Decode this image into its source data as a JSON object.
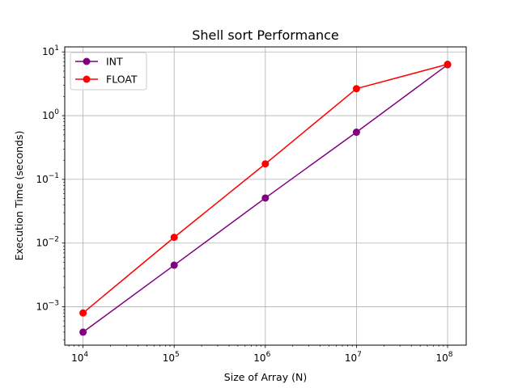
{
  "chart_data": {
    "type": "line",
    "title": "Shell sort Performance",
    "xlabel": "Size of Array (N)",
    "ylabel": "Execution Time (seconds)",
    "xscale": "log",
    "yscale": "log",
    "xlim": [
      6300,
      160000000
    ],
    "ylim": [
      0.00025,
      12
    ],
    "grid": true,
    "legend_position": "top-left",
    "x": [
      10000,
      100000,
      1000000,
      10000000,
      100000000
    ],
    "x_tick_values": [
      10000,
      100000,
      1000000,
      10000000,
      100000000
    ],
    "x_tick_exponents": [
      "4",
      "5",
      "6",
      "7",
      "8"
    ],
    "y_tick_values": [
      0.001,
      0.01,
      0.1,
      1,
      10
    ],
    "y_tick_exponents": [
      "−3",
      "−2",
      "−1",
      "0",
      "1"
    ],
    "tick_base": "10",
    "series": [
      {
        "name": "INT",
        "color": "#800080",
        "values": [
          0.0004,
          0.0045,
          0.051,
          0.55,
          6.3
        ]
      },
      {
        "name": "FLOAT",
        "color": "#ff0000",
        "values": [
          0.0008,
          0.0123,
          0.175,
          2.65,
          6.4
        ]
      }
    ]
  }
}
